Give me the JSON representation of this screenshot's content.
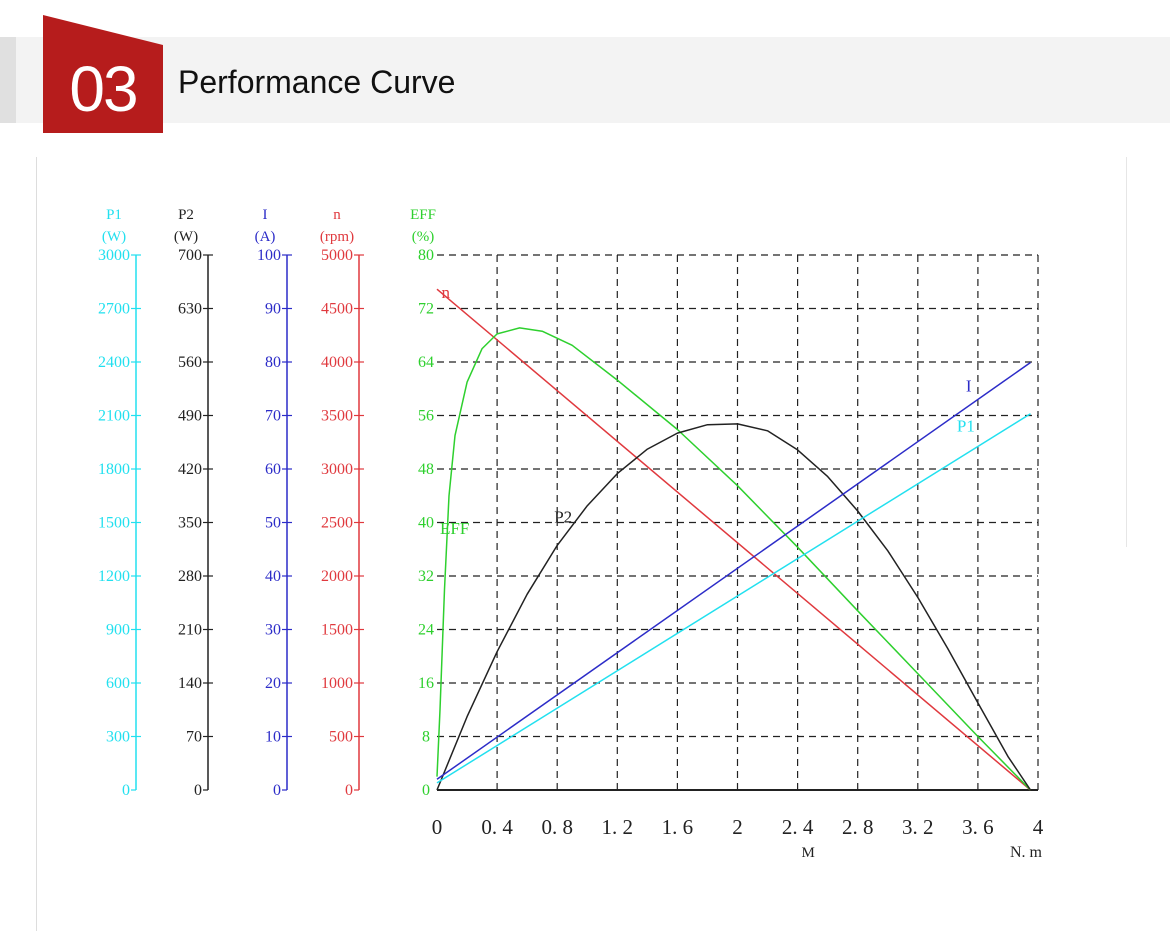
{
  "header": {
    "section_number": "03",
    "title": "Performance Curve",
    "badge_color": "#b61c1c"
  },
  "chart_data": {
    "type": "line",
    "title": "",
    "x_axis": {
      "label": "M",
      "unit": "N. m",
      "range": [
        0,
        4
      ],
      "tick_labels": [
        "0",
        "0. 4",
        "0. 8",
        "1. 2",
        "1. 6",
        "2",
        "2. 4",
        "2. 8",
        "3. 2",
        "3. 6",
        "4"
      ],
      "tick_values": [
        0,
        0.4,
        0.8,
        1.2,
        1.6,
        2.0,
        2.4,
        2.8,
        3.2,
        3.6,
        4.0
      ]
    },
    "y_axes": [
      {
        "id": "P1",
        "label": "P1",
        "unit": "(W)",
        "color": "#22e0ef",
        "range": [
          0,
          3000
        ],
        "ticks": [
          "0",
          "300",
          "600",
          "900",
          "1200",
          "1500",
          "1800",
          "2100",
          "2400",
          "2700",
          "3000"
        ]
      },
      {
        "id": "P2",
        "label": "P2",
        "unit": "(W)",
        "color": "#222222",
        "range": [
          0,
          700
        ],
        "ticks": [
          "0",
          "70",
          "140",
          "210",
          "280",
          "350",
          "420",
          "490",
          "560",
          "630",
          "700"
        ]
      },
      {
        "id": "I",
        "label": "I",
        "unit": "(A)",
        "color": "#2c2cc8",
        "range": [
          0,
          100
        ],
        "ticks": [
          "0",
          "10",
          "20",
          "30",
          "40",
          "50",
          "60",
          "70",
          "80",
          "90",
          "100"
        ]
      },
      {
        "id": "n",
        "label": "n",
        "unit": "(rpm)",
        "color": "#e0393e",
        "range": [
          0,
          5000
        ],
        "ticks": [
          "0",
          "500",
          "1000",
          "1500",
          "2000",
          "2500",
          "3000",
          "3500",
          "4000",
          "4500",
          "5000"
        ]
      },
      {
        "id": "EFF",
        "label": "EFF",
        "unit": "(%)",
        "color": "#2ed02e",
        "range": [
          0,
          80
        ],
        "ticks": [
          "0",
          "8",
          "16",
          "24",
          "32",
          "40",
          "48",
          "56",
          "64",
          "72",
          "80"
        ]
      }
    ],
    "grid": true,
    "series": [
      {
        "name": "n",
        "axis": "n",
        "color": "#e0393e",
        "label_at": [
          0.03,
          4600
        ],
        "points": [
          [
            0,
            4680
          ],
          [
            3.95,
            0
          ]
        ]
      },
      {
        "name": "EFF",
        "axis": "EFF",
        "color": "#2ed02e",
        "label_at": [
          0.02,
          38.3
        ],
        "points": [
          [
            0,
            2
          ],
          [
            0.02,
            12
          ],
          [
            0.05,
            30
          ],
          [
            0.08,
            44
          ],
          [
            0.12,
            53
          ],
          [
            0.2,
            61
          ],
          [
            0.3,
            66
          ],
          [
            0.4,
            68.2
          ],
          [
            0.55,
            69.1
          ],
          [
            0.7,
            68.6
          ],
          [
            0.9,
            66.5
          ],
          [
            1.2,
            61.3
          ],
          [
            1.6,
            53.9
          ],
          [
            2.0,
            45.5
          ],
          [
            2.4,
            36.3
          ],
          [
            2.8,
            26.8
          ],
          [
            3.2,
            17.4
          ],
          [
            3.6,
            8.0
          ],
          [
            3.95,
            0
          ]
        ]
      },
      {
        "name": "P2",
        "axis": "P2",
        "color": "#222222",
        "label_at": [
          0.78,
          350
        ],
        "points": [
          [
            0,
            0
          ],
          [
            0.2,
            96
          ],
          [
            0.4,
            181
          ],
          [
            0.6,
            256
          ],
          [
            0.8,
            320
          ],
          [
            1.0,
            372
          ],
          [
            1.2,
            414
          ],
          [
            1.4,
            446
          ],
          [
            1.6,
            467
          ],
          [
            1.8,
            478
          ],
          [
            2.0,
            479
          ],
          [
            2.2,
            470
          ],
          [
            2.4,
            445
          ],
          [
            2.6,
            410
          ],
          [
            2.8,
            365
          ],
          [
            3.0,
            313
          ],
          [
            3.2,
            252
          ],
          [
            3.4,
            185
          ],
          [
            3.6,
            114
          ],
          [
            3.8,
            44
          ],
          [
            3.95,
            0
          ]
        ]
      },
      {
        "name": "I",
        "axis": "I",
        "color": "#2c2cc8",
        "label_at": [
          3.52,
          74.5
        ],
        "points": [
          [
            0,
            2
          ],
          [
            3.95,
            79.9
          ]
        ]
      },
      {
        "name": "P1",
        "axis": "P1",
        "color": "#22e0ef",
        "label_at": [
          3.46,
          2010
        ],
        "points": [
          [
            0,
            40
          ],
          [
            3.95,
            2110
          ]
        ]
      }
    ]
  }
}
